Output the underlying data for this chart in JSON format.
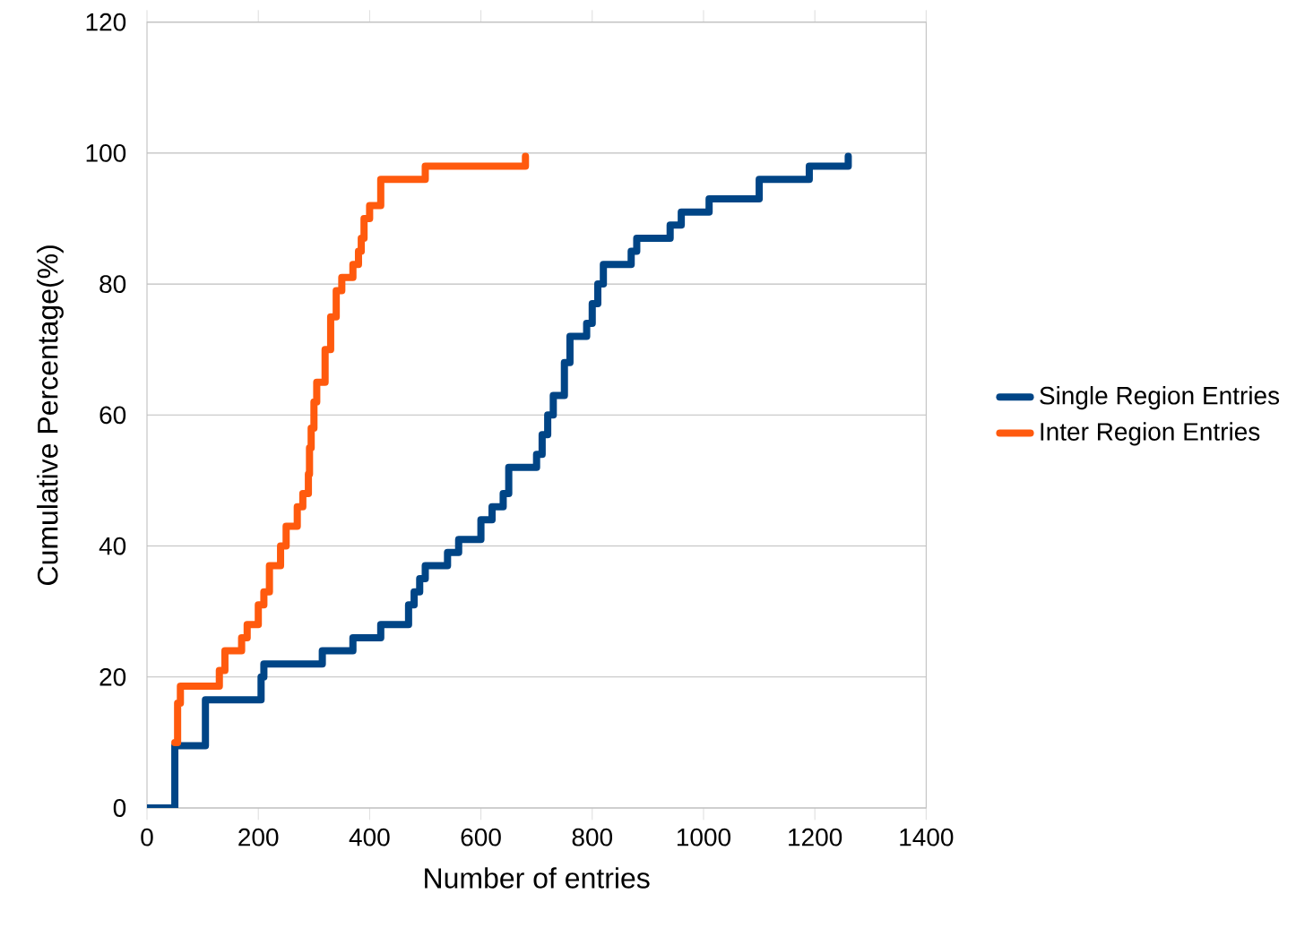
{
  "chart_data": {
    "type": "step",
    "xlabel": "Number of entries",
    "ylabel": "Cumulative Percentage(%)",
    "xlim": [
      0,
      1400
    ],
    "ylim": [
      0,
      120
    ],
    "xticks": [
      0,
      200,
      400,
      600,
      800,
      1000,
      1200,
      1400
    ],
    "yticks": [
      0,
      20,
      40,
      60,
      80,
      100,
      120
    ],
    "grid": "y",
    "legend": "right",
    "series": [
      {
        "name": "Single Region Entries",
        "color": "#004586",
        "x": [
          0,
          50,
          105,
          205,
          210,
          315,
          370,
          420,
          470,
          480,
          490,
          500,
          540,
          560,
          600,
          620,
          640,
          650,
          700,
          710,
          720,
          730,
          750,
          760,
          790,
          800,
          810,
          820,
          870,
          880,
          940,
          960,
          1010,
          1100,
          1190,
          1260
        ],
        "values": [
          0,
          9.5,
          16.5,
          20,
          22,
          24,
          26,
          28,
          31,
          33,
          35,
          37,
          39,
          41,
          44,
          46,
          48,
          52,
          54,
          57,
          60,
          63,
          68,
          72,
          74,
          77,
          80,
          83,
          85,
          87,
          89,
          91,
          93,
          96,
          98,
          99.5
        ]
      },
      {
        "name": "Inter Region Entries",
        "color": "#ff5a0e",
        "x": [
          50,
          55,
          60,
          130,
          140,
          170,
          180,
          200,
          210,
          220,
          240,
          250,
          270,
          280,
          290,
          292,
          295,
          300,
          305,
          320,
          330,
          340,
          350,
          370,
          380,
          385,
          390,
          400,
          420,
          500,
          670,
          680
        ],
        "values": [
          10,
          16,
          18.6,
          21,
          24,
          26,
          28,
          31,
          33,
          37,
          40,
          43,
          46,
          48,
          51,
          55,
          58,
          62,
          65,
          70,
          75,
          79,
          81,
          83,
          85,
          87,
          90,
          92,
          96,
          98,
          98,
          99.5
        ]
      }
    ]
  }
}
